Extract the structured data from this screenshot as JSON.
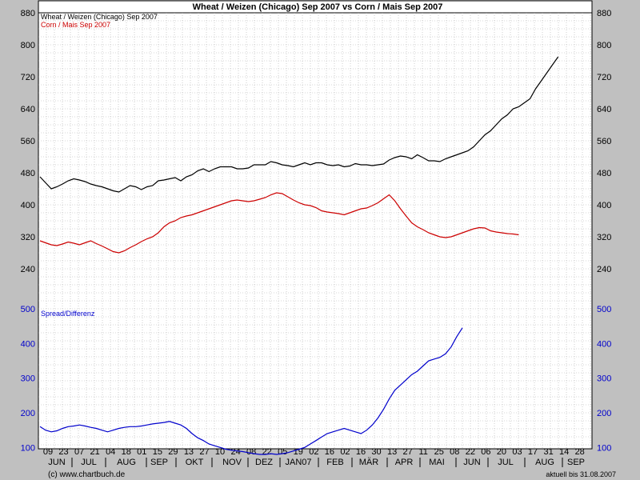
{
  "chart_data": {
    "type": "line",
    "title": "Wheat / Weizen (Chicago) Sep 2007 vs Corn / Mais Sep 2007",
    "colors": {
      "wheat": "#000000",
      "corn": "#cc0000",
      "spread": "#0000cc"
    },
    "upper_panel": {
      "ylim": [
        160,
        880
      ],
      "yticks": [
        "240",
        "320",
        "400",
        "480",
        "560",
        "640",
        "720",
        "800",
        "880"
      ],
      "series": [
        {
          "name": "Wheat / Weizen (Chicago) Sep 2007",
          "points": [
            [
              0,
              470
            ],
            [
              2,
              455
            ],
            [
              4,
              440
            ],
            [
              6,
              445
            ],
            [
              8,
              452
            ],
            [
              10,
              460
            ],
            [
              12,
              465
            ],
            [
              14,
              462
            ],
            [
              16,
              458
            ],
            [
              18,
              452
            ],
            [
              20,
              448
            ],
            [
              22,
              445
            ],
            [
              24,
              440
            ],
            [
              26,
              435
            ],
            [
              28,
              432
            ],
            [
              30,
              440
            ],
            [
              32,
              448
            ],
            [
              34,
              445
            ],
            [
              36,
              438
            ],
            [
              38,
              445
            ],
            [
              40,
              448
            ],
            [
              42,
              460
            ],
            [
              44,
              462
            ],
            [
              46,
              465
            ],
            [
              48,
              468
            ],
            [
              50,
              460
            ],
            [
              52,
              470
            ],
            [
              54,
              475
            ],
            [
              56,
              485
            ],
            [
              58,
              490
            ],
            [
              60,
              483
            ],
            [
              62,
              490
            ],
            [
              64,
              495
            ],
            [
              66,
              495
            ],
            [
              68,
              495
            ],
            [
              70,
              490
            ],
            [
              72,
              490
            ],
            [
              74,
              492
            ],
            [
              76,
              500
            ],
            [
              78,
              500
            ],
            [
              80,
              500
            ],
            [
              82,
              508
            ],
            [
              84,
              505
            ],
            [
              86,
              500
            ],
            [
              88,
              498
            ],
            [
              90,
              495
            ],
            [
              92,
              500
            ],
            [
              94,
              505
            ],
            [
              96,
              500
            ],
            [
              98,
              505
            ],
            [
              100,
              505
            ],
            [
              102,
              500
            ],
            [
              104,
              498
            ],
            [
              106,
              500
            ],
            [
              108,
              495
            ],
            [
              110,
              497
            ],
            [
              112,
              503
            ],
            [
              114,
              500
            ],
            [
              116,
              500
            ],
            [
              118,
              498
            ],
            [
              120,
              500
            ],
            [
              122,
              502
            ],
            [
              124,
              512
            ],
            [
              126,
              518
            ],
            [
              128,
              522
            ],
            [
              130,
              520
            ],
            [
              132,
              515
            ],
            [
              134,
              525
            ],
            [
              136,
              518
            ],
            [
              138,
              510
            ],
            [
              140,
              510
            ],
            [
              142,
              508
            ],
            [
              144,
              515
            ],
            [
              146,
              520
            ],
            [
              148,
              525
            ],
            [
              150,
              530
            ],
            [
              152,
              535
            ],
            [
              154,
              545
            ],
            [
              156,
              560
            ],
            [
              158,
              575
            ],
            [
              160,
              585
            ],
            [
              162,
              600
            ],
            [
              164,
              615
            ],
            [
              166,
              625
            ],
            [
              168,
              640
            ],
            [
              170,
              645
            ],
            [
              172,
              655
            ],
            [
              174,
              665
            ],
            [
              176,
              690
            ],
            [
              178,
              710
            ],
            [
              180,
              730
            ],
            [
              182,
              750
            ],
            [
              184,
              770
            ]
          ]
        },
        {
          "name": "Corn / Mais Sep 2007",
          "points": [
            [
              0,
              310
            ],
            [
              2,
              305
            ],
            [
              4,
              300
            ],
            [
              6,
              298
            ],
            [
              8,
              302
            ],
            [
              10,
              307
            ],
            [
              12,
              304
            ],
            [
              14,
              300
            ],
            [
              16,
              305
            ],
            [
              18,
              310
            ],
            [
              20,
              303
            ],
            [
              22,
              297
            ],
            [
              24,
              290
            ],
            [
              26,
              283
            ],
            [
              28,
              280
            ],
            [
              30,
              285
            ],
            [
              32,
              293
            ],
            [
              34,
              300
            ],
            [
              36,
              308
            ],
            [
              38,
              315
            ],
            [
              40,
              320
            ],
            [
              42,
              330
            ],
            [
              44,
              345
            ],
            [
              46,
              355
            ],
            [
              48,
              360
            ],
            [
              50,
              368
            ],
            [
              52,
              372
            ],
            [
              54,
              375
            ],
            [
              56,
              380
            ],
            [
              58,
              385
            ],
            [
              60,
              390
            ],
            [
              62,
              395
            ],
            [
              64,
              400
            ],
            [
              66,
              405
            ],
            [
              68,
              410
            ],
            [
              70,
              412
            ],
            [
              72,
              410
            ],
            [
              74,
              408
            ],
            [
              76,
              410
            ],
            [
              78,
              414
            ],
            [
              80,
              418
            ],
            [
              82,
              425
            ],
            [
              84,
              430
            ],
            [
              86,
              428
            ],
            [
              88,
              420
            ],
            [
              90,
              412
            ],
            [
              92,
              405
            ],
            [
              94,
              400
            ],
            [
              96,
              398
            ],
            [
              98,
              393
            ],
            [
              100,
              385
            ],
            [
              102,
              382
            ],
            [
              104,
              380
            ],
            [
              106,
              378
            ],
            [
              108,
              375
            ],
            [
              110,
              380
            ],
            [
              112,
              385
            ],
            [
              114,
              390
            ],
            [
              116,
              392
            ],
            [
              118,
              398
            ],
            [
              120,
              405
            ],
            [
              122,
              415
            ],
            [
              124,
              425
            ],
            [
              126,
              410
            ],
            [
              128,
              390
            ],
            [
              130,
              372
            ],
            [
              132,
              355
            ],
            [
              134,
              345
            ],
            [
              136,
              338
            ],
            [
              138,
              330
            ],
            [
              140,
              325
            ],
            [
              142,
              320
            ],
            [
              144,
              318
            ],
            [
              146,
              320
            ],
            [
              148,
              325
            ],
            [
              150,
              330
            ],
            [
              152,
              335
            ],
            [
              154,
              340
            ],
            [
              156,
              343
            ],
            [
              158,
              342
            ],
            [
              160,
              335
            ],
            [
              162,
              332
            ],
            [
              164,
              330
            ],
            [
              166,
              328
            ],
            [
              168,
              327
            ],
            [
              170,
              325
            ]
          ]
        }
      ]
    },
    "lower_panel": {
      "ylim": [
        80,
        500
      ],
      "yticks": [
        "100",
        "200",
        "300",
        "400",
        "500"
      ],
      "series": [
        {
          "name": "Spread/Differenz",
          "points": [
            [
              0,
              160
            ],
            [
              2,
              150
            ],
            [
              4,
              145
            ],
            [
              6,
              148
            ],
            [
              8,
              155
            ],
            [
              10,
              160
            ],
            [
              12,
              162
            ],
            [
              14,
              165
            ],
            [
              16,
              162
            ],
            [
              18,
              158
            ],
            [
              20,
              155
            ],
            [
              22,
              150
            ],
            [
              24,
              145
            ],
            [
              26,
              150
            ],
            [
              28,
              155
            ],
            [
              30,
              158
            ],
            [
              32,
              160
            ],
            [
              34,
              160
            ],
            [
              36,
              162
            ],
            [
              38,
              165
            ],
            [
              40,
              168
            ],
            [
              42,
              170
            ],
            [
              44,
              172
            ],
            [
              46,
              175
            ],
            [
              48,
              170
            ],
            [
              50,
              165
            ],
            [
              52,
              155
            ],
            [
              54,
              140
            ],
            [
              56,
              128
            ],
            [
              58,
              120
            ],
            [
              60,
              110
            ],
            [
              62,
              105
            ],
            [
              64,
              100
            ],
            [
              66,
              95
            ],
            [
              68,
              92
            ],
            [
              70,
              90
            ],
            [
              72,
              88
            ],
            [
              74,
              85
            ],
            [
              76,
              82
            ],
            [
              78,
              80
            ],
            [
              80,
              80
            ],
            [
              82,
              82
            ],
            [
              84,
              80
            ],
            [
              86,
              82
            ],
            [
              88,
              85
            ],
            [
              90,
              90
            ],
            [
              92,
              95
            ],
            [
              94,
              100
            ],
            [
              96,
              110
            ],
            [
              98,
              120
            ],
            [
              100,
              130
            ],
            [
              102,
              140
            ],
            [
              104,
              145
            ],
            [
              106,
              150
            ],
            [
              108,
              155
            ],
            [
              110,
              150
            ],
            [
              112,
              145
            ],
            [
              114,
              140
            ],
            [
              116,
              150
            ],
            [
              118,
              165
            ],
            [
              120,
              185
            ],
            [
              122,
              210
            ],
            [
              124,
              240
            ],
            [
              126,
              265
            ],
            [
              128,
              280
            ],
            [
              130,
              295
            ],
            [
              132,
              310
            ],
            [
              134,
              320
            ],
            [
              136,
              335
            ],
            [
              138,
              350
            ],
            [
              140,
              355
            ],
            [
              142,
              360
            ],
            [
              144,
              370
            ],
            [
              146,
              390
            ],
            [
              148,
              420
            ],
            [
              150,
              445
            ]
          ]
        }
      ]
    },
    "x_axis": {
      "days": [
        "09",
        "23",
        "07",
        "21",
        "04",
        "18",
        "01",
        "15",
        "29",
        "13",
        "27",
        "10",
        "24",
        "08",
        "22",
        "05",
        "19",
        "02",
        "16",
        "02",
        "16",
        "30",
        "13",
        "27",
        "11",
        "25",
        "08",
        "22",
        "06",
        "20",
        "03",
        "17",
        "31",
        "14",
        "28"
      ],
      "months": [
        "JUN",
        "JUL",
        "AUG",
        "SEP",
        "OKT",
        "NOV",
        "DEZ",
        "JAN07",
        "FEB",
        "MÄR",
        "APR",
        "MAI",
        "JUN",
        "JUL",
        "AUG",
        "SEP"
      ]
    },
    "footer_left": "(c) www.chartbuch.de",
    "footer_right": "aktuell bis 31.08.2007"
  }
}
